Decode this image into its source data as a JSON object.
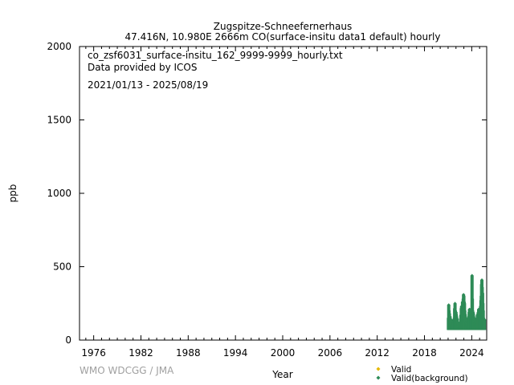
{
  "title": {
    "line1": "Zugspitze-Schneefernerhaus",
    "line2": "47.416N, 10.980E 2666m    CO(surface-insitu data1 default) hourly"
  },
  "info": {
    "filename": "co_zsf6031_surface-insitu_162_9999-9999_hourly.txt",
    "provider": "Data provided by ICOS",
    "period": "2021/01/13 - 2025/08/19"
  },
  "credit": "WMO WDCGG / JMA",
  "colors": {
    "valid": "#e6b800",
    "valid_background": "#2e8b57"
  },
  "chart_data": {
    "type": "scatter",
    "xlabel": "Year",
    "ylabel": "ppb",
    "xlim": [
      1974.2,
      2025.9
    ],
    "ylim": [
      0,
      2000
    ],
    "x_ticks": [
      1976,
      1982,
      1988,
      1994,
      2000,
      2006,
      2012,
      2018,
      2024
    ],
    "y_ticks": [
      0,
      500,
      1000,
      1500,
      2000
    ],
    "grid": false,
    "legend_position": "bottom-right",
    "series": [
      {
        "name": "Valid",
        "color": "#e6b800",
        "x": [],
        "y": []
      },
      {
        "name": "Valid(background)",
        "color": "#2e8b57",
        "x": [
          2021.04,
          2021.08,
          2021.12,
          2021.17,
          2021.21,
          2021.25,
          2021.29,
          2021.33,
          2021.38,
          2021.42,
          2021.46,
          2021.5,
          2021.54,
          2021.58,
          2021.62,
          2021.67,
          2021.71,
          2021.75,
          2021.79,
          2021.83,
          2021.88,
          2021.92,
          2021.96,
          2022.0,
          2022.04,
          2022.08,
          2022.12,
          2022.17,
          2022.21,
          2022.25,
          2022.29,
          2022.33,
          2022.38,
          2022.42,
          2022.46,
          2022.5,
          2022.54,
          2022.58,
          2022.62,
          2022.67,
          2022.71,
          2022.75,
          2022.79,
          2022.83,
          2022.88,
          2022.92,
          2022.96,
          2023.0,
          2023.04,
          2023.08,
          2023.12,
          2023.17,
          2023.21,
          2023.25,
          2023.29,
          2023.33,
          2023.38,
          2023.42,
          2023.46,
          2023.5,
          2023.54,
          2023.58,
          2023.62,
          2023.67,
          2023.71,
          2023.75,
          2023.79,
          2023.83,
          2023.88,
          2023.92,
          2023.96,
          2024.0,
          2024.04,
          2024.08,
          2024.12,
          2024.17,
          2024.21,
          2024.25,
          2024.29,
          2024.33,
          2024.38,
          2024.42,
          2024.46,
          2024.5,
          2024.54,
          2024.58,
          2024.62,
          2024.67,
          2024.71,
          2024.75,
          2024.79,
          2024.83,
          2024.88,
          2024.92,
          2024.96,
          2025.0,
          2025.04,
          2025.08,
          2025.12,
          2025.17,
          2025.21,
          2025.25,
          2025.29,
          2025.33,
          2025.38,
          2025.42,
          2025.46,
          2025.5,
          2025.54,
          2025.58,
          2025.62
        ],
        "y": [
          150,
          240,
          200,
          180,
          120,
          160,
          110,
          95,
          140,
          105,
          90,
          100,
          130,
          110,
          85,
          95,
          120,
          140,
          150,
          215,
          250,
          200,
          170,
          190,
          175,
          160,
          130,
          145,
          110,
          100,
          95,
          90,
          80,
          85,
          110,
          120,
          95,
          100,
          170,
          215,
          230,
          190,
          180,
          260,
          250,
          280,
          310,
          300,
          260,
          250,
          200,
          175,
          140,
          150,
          120,
          110,
          100,
          90,
          95,
          100,
          120,
          130,
          160,
          190,
          210,
          175,
          200,
          180,
          210,
          190,
          170,
          150,
          440,
          280,
          200,
          190,
          180,
          160,
          150,
          140,
          120,
          110,
          100,
          95,
          100,
          110,
          110,
          150,
          170,
          160,
          180,
          190,
          210,
          180,
          170,
          160,
          160,
          200,
          230,
          270,
          300,
          380,
          410,
          360,
          320,
          250,
          200,
          150,
          110,
          120,
          140
        ]
      }
    ],
    "band_low_valid_background": 80
  }
}
